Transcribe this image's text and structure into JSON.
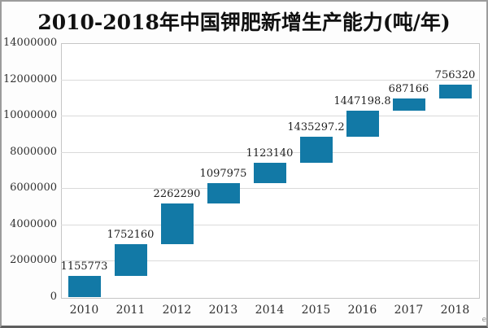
{
  "chart_data": {
    "type": "bar",
    "subtype": "waterfall-cumulative",
    "title": "2010-2018年中国钾肥新增生产能力(吨/年)",
    "categories": [
      "2010",
      "2011",
      "2012",
      "2013",
      "2014",
      "2015",
      "2016",
      "2017",
      "2018"
    ],
    "values": [
      1155773,
      1752160,
      2262290,
      1097975,
      1123140,
      1435297.2,
      1447198.8,
      687166,
      756320
    ],
    "value_labels": [
      "1155773",
      "1752160",
      "2262290",
      "1097975",
      "1123140",
      "1435297.2",
      "1447198.8",
      "687166",
      "756320"
    ],
    "yticks": [
      0,
      2000000,
      4000000,
      6000000,
      8000000,
      10000000,
      12000000,
      14000000
    ],
    "ylim": [
      0,
      14000000
    ],
    "xlabel": "",
    "ylabel": "",
    "grid": true,
    "legend": false,
    "bar_color": "#1279a6",
    "grid_color": "#dadada",
    "axis_border_color": "#c6c6c6",
    "text_color": "#303030"
  },
  "watermark": "e"
}
